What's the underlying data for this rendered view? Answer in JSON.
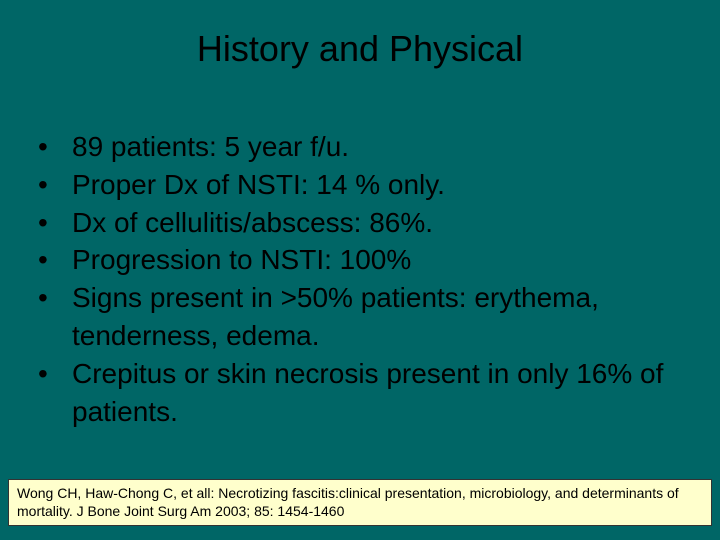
{
  "colors": {
    "background": "#006666",
    "text": "#000000",
    "citation_bg": "#ffffcc",
    "citation_border": "#333333"
  },
  "typography": {
    "title_fontsize": 36,
    "bullet_fontsize": 28,
    "citation_fontsize": 14,
    "font_family": "Arial"
  },
  "title": "History and Physical",
  "bullets": [
    "89 patients: 5 year f/u.",
    "Proper Dx of NSTI: 14 % only.",
    "Dx of cellulitis/abscess: 86%.",
    "Progression to NSTI: 100%",
    "Signs present in >50% patients: erythema, tenderness, edema.",
    "Crepitus or skin necrosis present in only 16% of patients."
  ],
  "citation": "Wong CH, Haw-Chong C, et all: Necrotizing fascitis:clinical presentation, microbiology, and determinants of mortality. J Bone Joint  Surg Am 2003; 85: 1454-1460"
}
